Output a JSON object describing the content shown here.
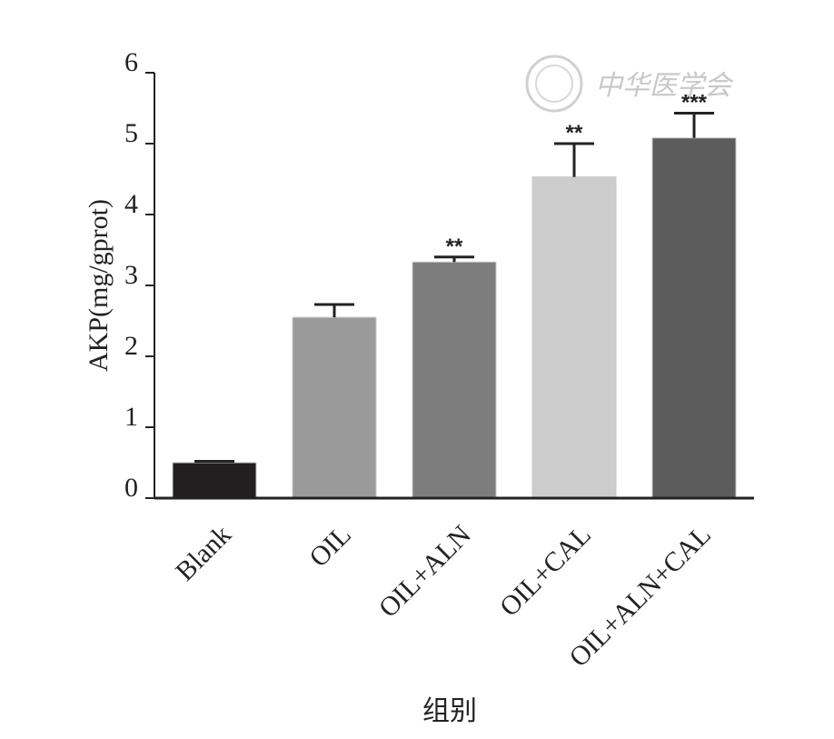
{
  "chart_data": {
    "type": "bar",
    "categories": [
      "Blank",
      "OIL",
      "OIL+ALN",
      "OIL+CAL",
      "OIL+ALN+CAL"
    ],
    "values": [
      0.5,
      2.55,
      3.33,
      4.53,
      5.08
    ],
    "errors": [
      0.02,
      0.18,
      0.07,
      0.47,
      0.35
    ],
    "significance": [
      "",
      "",
      "**",
      "**",
      "***"
    ],
    "bar_colors": [
      "#231f20",
      "#9a9a9a",
      "#7d7d7d",
      "#cdcdcd",
      "#5c5c5c"
    ],
    "title": "",
    "xlabel": "组别",
    "ylabel": "AKP(mg/gprot)",
    "ylim": [
      0,
      6
    ],
    "yticks": [
      0,
      1,
      2,
      3,
      4,
      5,
      6
    ],
    "grid": false,
    "legend": "none"
  },
  "watermark": {
    "text": "中华医学会",
    "color": "#c8c8c8"
  }
}
